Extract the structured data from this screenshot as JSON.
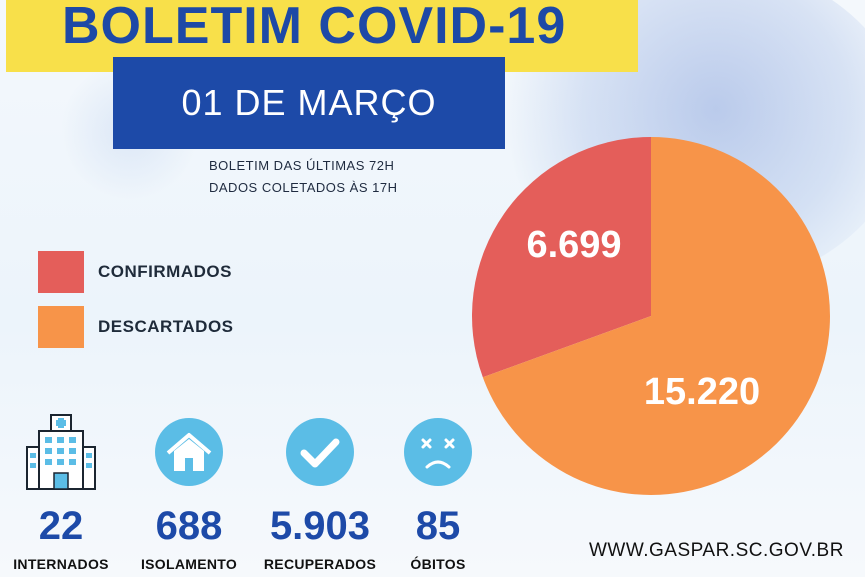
{
  "header": {
    "title": "BOLETIM COVID-19",
    "date": "01 DE MARÇO",
    "note_line1": "BOLETIM DAS ÚLTIMAS 72H",
    "note_line2": "DADOS COLETADOS ÀS  17H"
  },
  "legend": [
    {
      "label": "CONFIRMADOS",
      "color": "#e45e5a"
    },
    {
      "label": "DESCARTADOS",
      "color": "#f79449"
    }
  ],
  "chart_data": {
    "type": "pie",
    "categories": [
      "CONFIRMADOS",
      "DESCARTADOS"
    ],
    "values": [
      6699,
      15220
    ],
    "value_labels": [
      "6.699",
      "15.220"
    ],
    "colors": [
      "#e45e5a",
      "#f79449"
    ],
    "legend_position": "left"
  },
  "stats": [
    {
      "value": "22",
      "label": "INTERNADOS",
      "icon": "hospital-icon"
    },
    {
      "value": "688",
      "label": "ISOLAMENTO",
      "icon": "house-icon"
    },
    {
      "value": "5.903",
      "label": "RECUPERADOS",
      "icon": "checkmark-icon"
    },
    {
      "value": "85",
      "label": "ÓBITOS",
      "icon": "sad-face-icon"
    }
  ],
  "footer": {
    "url": "WWW.GASPAR.SC.GOV.BR"
  },
  "colors": {
    "title_yellow": "#f8e04a",
    "brand_blue": "#1d4aa8",
    "icon_circle": "#5bbde6"
  }
}
